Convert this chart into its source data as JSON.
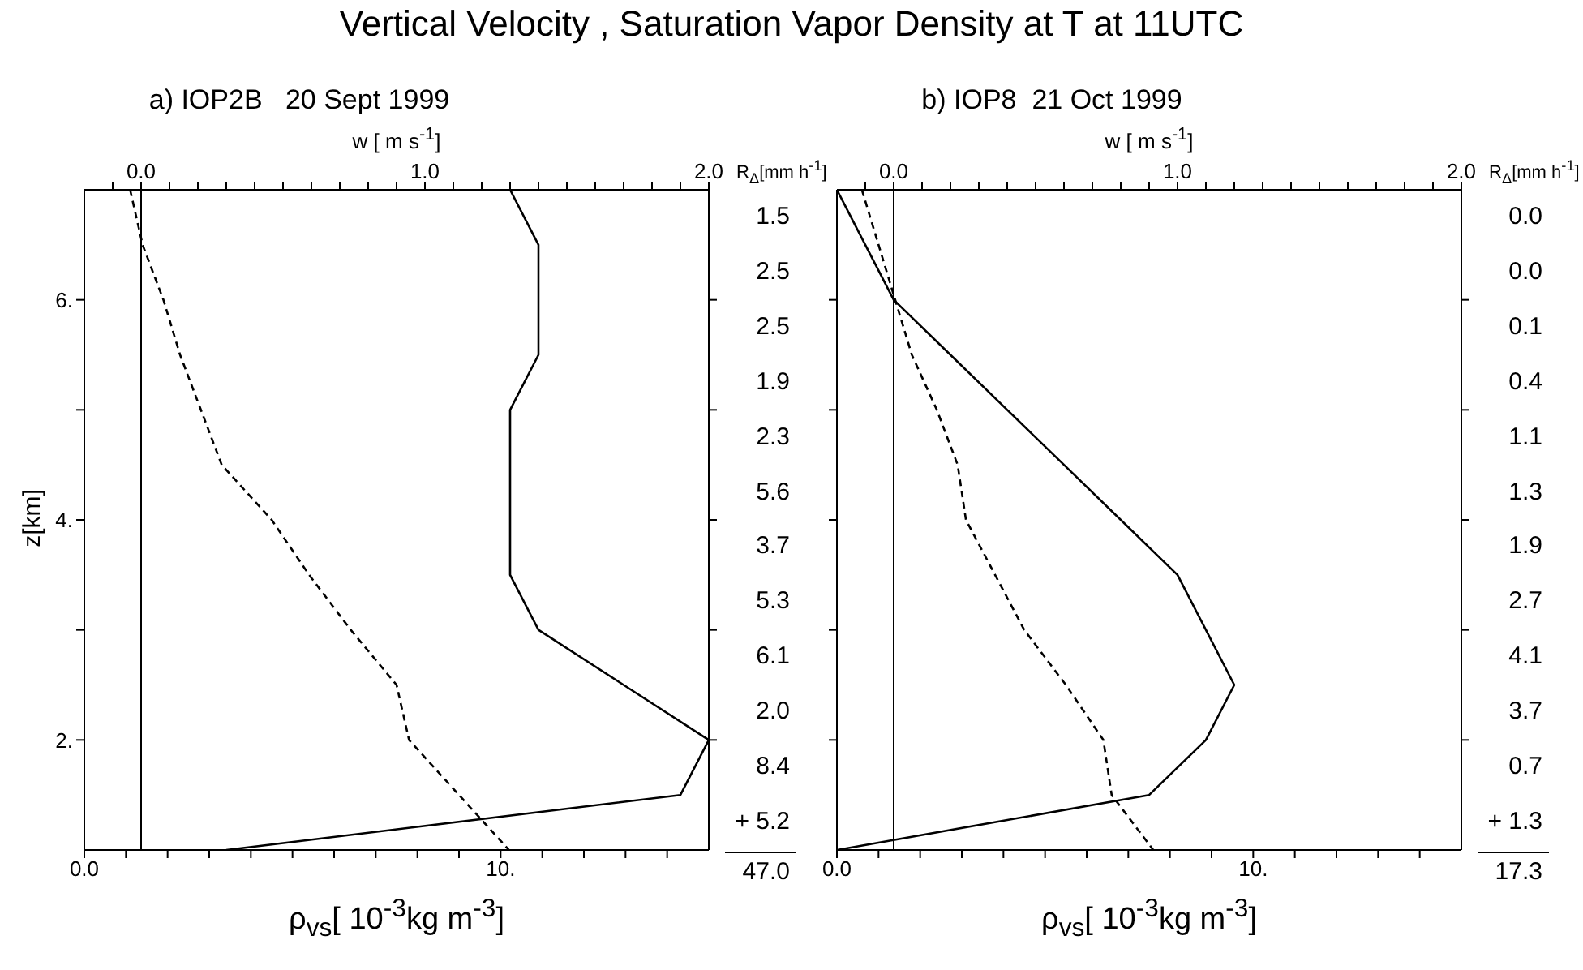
{
  "chart_data": [
    {
      "type": "line",
      "title": "Vertical Velocity , Saturation Vapor Density at T at 11UTC",
      "subtitle": "a) IOP2B   20 Sept 1999",
      "xlabel": "ρ$_{vs}$[ 10$^{-3}$kg m$^{-3}$]",
      "x2label": "w [ m s$^{-1}$]",
      "ylabel": "z[km]",
      "xlim": [
        0,
        15
      ],
      "xticks": [
        {
          "value": 0,
          "label": "0.0"
        },
        {
          "value": 1,
          "label": null
        },
        {
          "value": 2,
          "label": null
        },
        {
          "value": 3,
          "label": null
        },
        {
          "value": 4,
          "label": null
        },
        {
          "value": 5,
          "label": null
        },
        {
          "value": 6,
          "label": null
        },
        {
          "value": 7,
          "label": null
        },
        {
          "value": 8,
          "label": null
        },
        {
          "value": 9,
          "label": null
        },
        {
          "value": 10,
          "label": "10."
        },
        {
          "value": 11,
          "label": null
        },
        {
          "value": 12,
          "label": null
        },
        {
          "value": 13,
          "label": null
        },
        {
          "value": 14,
          "label": null
        }
      ],
      "x2lim": [
        -0.2,
        2.0
      ],
      "x2ticks": [
        {
          "value": -0.1,
          "label": null
        },
        {
          "value": 0.0,
          "label": "0.0"
        },
        {
          "value": 0.1,
          "label": null
        },
        {
          "value": 0.2,
          "label": null
        },
        {
          "value": 0.3,
          "label": null
        },
        {
          "value": 0.4,
          "label": null
        },
        {
          "value": 0.5,
          "label": null
        },
        {
          "value": 0.6,
          "label": null
        },
        {
          "value": 0.7,
          "label": null
        },
        {
          "value": 0.8,
          "label": null
        },
        {
          "value": 0.9,
          "label": null
        },
        {
          "value": 1.0,
          "label": "1.0"
        },
        {
          "value": 1.1,
          "label": null
        },
        {
          "value": 1.2,
          "label": null
        },
        {
          "value": 1.3,
          "label": null
        },
        {
          "value": 1.4,
          "label": null
        },
        {
          "value": 1.5,
          "label": null
        },
        {
          "value": 1.6,
          "label": null
        },
        {
          "value": 1.7,
          "label": null
        },
        {
          "value": 1.8,
          "label": null
        },
        {
          "value": 1.9,
          "label": null
        },
        {
          "value": 2.0,
          "label": "2.0"
        }
      ],
      "ylim": [
        1,
        7
      ],
      "yticks": [
        {
          "value": 2,
          "label": "2."
        },
        {
          "value": 3,
          "label": null
        },
        {
          "value": 4,
          "label": "4."
        },
        {
          "value": 5,
          "label": null
        },
        {
          "value": 6,
          "label": "6."
        }
      ],
      "ref_lines": [
        {
          "axis": "x2",
          "value": 0,
          "color": "#000000"
        }
      ],
      "series": [
        {
          "color": "#000000",
          "line_style": "dashed",
          "x": [
            1.1,
            1.4,
            1.9,
            2.3,
            2.8,
            3.3,
            4.5,
            5.4,
            6.4,
            7.5,
            7.8,
            9.0,
            10.2
          ],
          "values": [
            7,
            6.5,
            6,
            5.5,
            5,
            4.5,
            4,
            3.5,
            3,
            2.5,
            2,
            1.5,
            1
          ]
        },
        {
          "color": "#000000",
          "line_style": "solid",
          "axis": "x2",
          "x": [
            1.3,
            1.4,
            1.4,
            1.4,
            1.3,
            1.3,
            1.3,
            1.3,
            1.4,
            1.7,
            2.0,
            1.9,
            0.3
          ],
          "values": [
            7,
            6.5,
            6,
            5.5,
            5,
            4.5,
            4,
            3.5,
            3,
            2.5,
            2,
            1.5,
            1
          ]
        }
      ],
      "annotations": [
        "R$_{Δ}$[mm h$^{-1}$]",
        "1.5",
        "2.5",
        "2.5",
        "1.9",
        "2.3",
        "5.6",
        "3.7",
        "5.3",
        "6.1",
        "2.0",
        "8.4",
        "+ 5.2",
        "47.0"
      ]
    },
    {
      "type": "line",
      "subtitle": "b) IOP8  21 Oct 1999",
      "xlabel": "ρ$_{vs}$[ 10$^{-3}$kg m$^{-3}$]",
      "x2label": "w [ m s$^{-1}$]",
      "tick_labels": "x",
      "xlim": [
        0,
        15
      ],
      "xticks": [
        {
          "value": 0,
          "label": "0.0"
        },
        {
          "value": 1,
          "label": null
        },
        {
          "value": 2,
          "label": null
        },
        {
          "value": 3,
          "label": null
        },
        {
          "value": 4,
          "label": null
        },
        {
          "value": 5,
          "label": null
        },
        {
          "value": 6,
          "label": null
        },
        {
          "value": 7,
          "label": null
        },
        {
          "value": 8,
          "label": null
        },
        {
          "value": 9,
          "label": null
        },
        {
          "value": 10,
          "label": "10."
        },
        {
          "value": 11,
          "label": null
        },
        {
          "value": 12,
          "label": null
        },
        {
          "value": 13,
          "label": null
        },
        {
          "value": 14,
          "label": null
        }
      ],
      "x2lim": [
        -0.2,
        2.0
      ],
      "x2ticks": [
        {
          "value": -0.1,
          "label": null
        },
        {
          "value": 0.0,
          "label": "0.0"
        },
        {
          "value": 0.1,
          "label": null
        },
        {
          "value": 0.2,
          "label": null
        },
        {
          "value": 0.3,
          "label": null
        },
        {
          "value": 0.4,
          "label": null
        },
        {
          "value": 0.5,
          "label": null
        },
        {
          "value": 0.6,
          "label": null
        },
        {
          "value": 0.7,
          "label": null
        },
        {
          "value": 0.8,
          "label": null
        },
        {
          "value": 0.9,
          "label": null
        },
        {
          "value": 1.0,
          "label": "1.0"
        },
        {
          "value": 1.1,
          "label": null
        },
        {
          "value": 1.2,
          "label": null
        },
        {
          "value": 1.3,
          "label": null
        },
        {
          "value": 1.4,
          "label": null
        },
        {
          "value": 1.5,
          "label": null
        },
        {
          "value": 1.6,
          "label": null
        },
        {
          "value": 1.7,
          "label": null
        },
        {
          "value": 1.8,
          "label": null
        },
        {
          "value": 1.9,
          "label": null
        },
        {
          "value": 2.0,
          "label": "2.0"
        }
      ],
      "ylim": [
        1,
        7
      ],
      "yticks": [
        {
          "value": 2,
          "label": null
        },
        {
          "value": 3,
          "label": null
        },
        {
          "value": 4,
          "label": null
        },
        {
          "value": 5,
          "label": null
        },
        {
          "value": 6,
          "label": null
        }
      ],
      "ref_lines": [
        {
          "axis": "x2",
          "value": 0,
          "color": "#000000"
        }
      ],
      "series": [
        {
          "color": "#000000",
          "line_style": "dashed",
          "x": [
            0.6,
            1.0,
            1.4,
            1.8,
            2.4,
            2.9,
            3.1,
            3.8,
            4.5,
            5.5,
            6.4,
            6.6,
            7.6
          ],
          "values": [
            7,
            6.5,
            6,
            5.5,
            5,
            4.5,
            4,
            3.5,
            3,
            2.5,
            2,
            1.5,
            1
          ]
        },
        {
          "color": "#000000",
          "line_style": "solid",
          "axis": "x2",
          "x": [
            -0.2,
            -0.1,
            0.0,
            0.2,
            0.4,
            0.6,
            0.8,
            1.0,
            1.1,
            1.2,
            1.1,
            0.9,
            -0.2
          ],
          "values": [
            7,
            6.5,
            6,
            5.5,
            5,
            4.5,
            4,
            3.5,
            3,
            2.5,
            2,
            1.5,
            1
          ]
        }
      ],
      "annotations": [
        "R$_{Δ}$[mm h$^{-1}$]",
        "0.0",
        "0.0",
        "0.1",
        "0.4",
        "1.1",
        "1.3",
        "1.9",
        "2.7",
        "4.1",
        "3.7",
        "0.7",
        "+ 1.3",
        "17.3"
      ]
    }
  ]
}
